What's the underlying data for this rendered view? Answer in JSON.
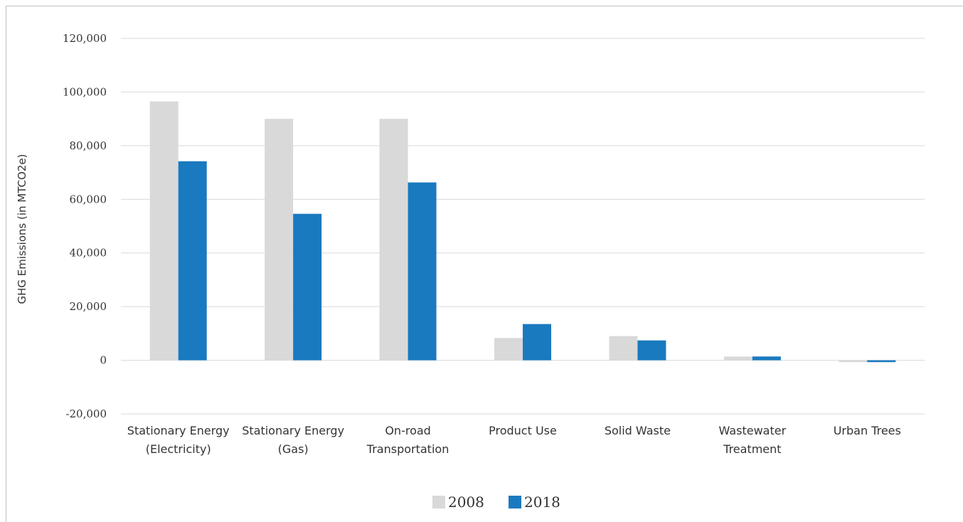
{
  "chart_data": {
    "type": "bar",
    "ylabel": "GHG Emissions (in MTCO2e)",
    "ylim": [
      -20000,
      120000
    ],
    "yticks": [
      "-20,000",
      "0",
      "20,000",
      "40,000",
      "60,000",
      "80,000",
      "100,000",
      "120,000"
    ],
    "ytick_values": [
      -20000,
      0,
      20000,
      40000,
      60000,
      80000,
      100000,
      120000
    ],
    "grid": true,
    "legend_position": "bottom",
    "categories": [
      [
        "Stationary Energy",
        "(Electricity)"
      ],
      [
        "Stationary Energy",
        "(Gas)"
      ],
      [
        "On-road",
        "Transportation"
      ],
      [
        "Product Use"
      ],
      [
        "Solid Waste"
      ],
      [
        "Wastewater",
        "Treatment"
      ],
      [
        "Urban Trees"
      ]
    ],
    "series": [
      {
        "name": "2008",
        "color": "#d9d9d9",
        "values": [
          96500,
          90000,
          90000,
          8300,
          9000,
          1400,
          -700
        ]
      },
      {
        "name": "2018",
        "color": "#1a7abf",
        "values": [
          74200,
          54600,
          66300,
          13500,
          7400,
          1400,
          -700
        ]
      }
    ]
  }
}
